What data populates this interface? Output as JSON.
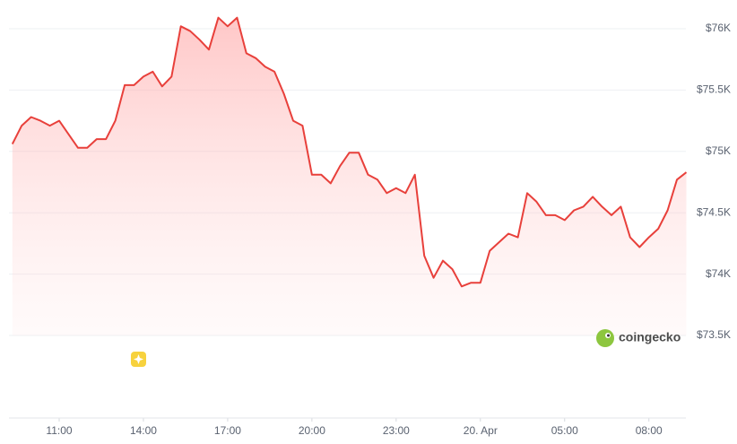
{
  "chart_data": {
    "type": "line",
    "categories": [
      null,
      null,
      null,
      null,
      null,
      null,
      null,
      null,
      null,
      null,
      null,
      null,
      null,
      null,
      null,
      null,
      null,
      null,
      null,
      null,
      null,
      null,
      null,
      null,
      null,
      null,
      null,
      null,
      null,
      null,
      null,
      null,
      null,
      null,
      null,
      null,
      null,
      null,
      null,
      null,
      null,
      null,
      null,
      null,
      null,
      null,
      null,
      null,
      null,
      null,
      null,
      null,
      null,
      null,
      null,
      null,
      null,
      null,
      null,
      null,
      null,
      null,
      null,
      null,
      null,
      null,
      null,
      null,
      null,
      null,
      null,
      null,
      null
    ],
    "series": [
      {
        "color": "#e8403b",
        "values": [
          75060,
          75210,
          75280,
          75250,
          75210,
          75250,
          75140,
          75030,
          75030,
          75100,
          75100,
          75250,
          75540,
          75540,
          75610,
          75650,
          75530,
          75610,
          76020,
          75980,
          75910,
          75830,
          76090,
          76020,
          76090,
          75800,
          75760,
          75690,
          75650,
          75470,
          75250,
          75210,
          74810,
          74810,
          74740,
          74880,
          74990,
          74990,
          74810,
          74770,
          74660,
          74700,
          74660,
          74810,
          74150,
          73970,
          74110,
          74040,
          73900,
          73930,
          73930,
          74190,
          74260,
          74330,
          74300,
          74660,
          74590,
          74480,
          74480,
          74440,
          74520,
          74550,
          74630,
          74550,
          74480,
          74550,
          74300,
          74220,
          74300,
          74370,
          74520,
          74770,
          74830
        ]
      }
    ],
    "ylim": [
      73500,
      76200
    ],
    "yticks": [
      {
        "value": 73500,
        "label": "$73.5K"
      },
      {
        "value": 74000,
        "label": "$74K"
      },
      {
        "value": 74500,
        "label": "$74.5K"
      },
      {
        "value": 75000,
        "label": "$75K"
      },
      {
        "value": 75500,
        "label": "$75.5K"
      },
      {
        "value": 76000,
        "label": "$76K"
      }
    ],
    "xticks": [
      {
        "value": 5,
        "label": "11:00"
      },
      {
        "value": 14,
        "label": "14:00"
      },
      {
        "value": 23,
        "label": "17:00"
      },
      {
        "value": 32,
        "label": "20:00"
      },
      {
        "value": 41,
        "label": "23:00"
      },
      {
        "value": 50,
        "label": "20. Apr"
      },
      {
        "value": 59,
        "label": "05:00"
      },
      {
        "value": 68,
        "label": "08:00"
      }
    ],
    "grid": true,
    "watermark": "coingecko"
  }
}
